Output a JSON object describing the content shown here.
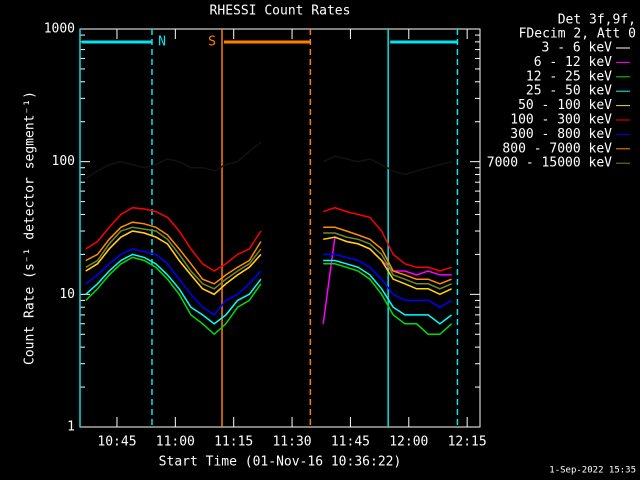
{
  "chart_data": {
    "type": "line",
    "title": "RHESSI Count Rates",
    "xlabel": "Start Time (01-Nov-16 10:36:22)",
    "ylabel": "Count Rate (s⁻¹ detector segment⁻¹)",
    "legend_header": [
      "Det 3f,9f,",
      "FDecim 2, Att 0"
    ],
    "footer": "1-Sep-2022 15:35",
    "log_y": true,
    "ylim": [
      1,
      1000
    ],
    "yticks": [
      1,
      10,
      100,
      1000
    ],
    "xlim": [
      635.5,
      738.3
    ],
    "xticks": [
      {
        "value": 645,
        "label": "10:45"
      },
      {
        "value": 660,
        "label": "11:00"
      },
      {
        "value": 675,
        "label": "11:15"
      },
      {
        "value": 690,
        "label": "11:30"
      },
      {
        "value": 705,
        "label": "11:45"
      },
      {
        "value": 720,
        "label": "12:00"
      },
      {
        "value": 735,
        "label": "12:15"
      }
    ],
    "intervals": [
      {
        "label": "N",
        "color": "#00e5ee",
        "start": 635.5,
        "end": 654.0
      },
      {
        "label": "S",
        "color": "#ff7f00",
        "start": 672.0,
        "end": 694.7
      },
      {
        "label": null,
        "color": "#00e5ee",
        "start": 714.7,
        "end": 732.5
      }
    ],
    "x": [
      637,
      640,
      643,
      646,
      649,
      652,
      655,
      658,
      661,
      664,
      667,
      670,
      673,
      676,
      679,
      682,
      690,
      698,
      701,
      704,
      707,
      710,
      713,
      716,
      719,
      722,
      725,
      728,
      731
    ],
    "series": [
      {
        "name": "3 - 6 keV",
        "color": "#000000",
        "values": [
          75,
          85,
          95,
          100,
          95,
          90,
          95,
          105,
          100,
          90,
          90,
          85,
          95,
          100,
          120,
          140,
          null,
          100,
          110,
          105,
          100,
          105,
          95,
          85,
          80,
          85,
          90,
          95,
          100
        ]
      },
      {
        "name": "6 - 12 keV",
        "color": "#ff00ff",
        "values": [
          15,
          17,
          22,
          27,
          30,
          29,
          27,
          24,
          18,
          14,
          11,
          10,
          12,
          14,
          16,
          20,
          null,
          6,
          27,
          25,
          24,
          22,
          18,
          15,
          15,
          14,
          15,
          14,
          14
        ]
      },
      {
        "name": "12 - 25 keV",
        "color": "#00dd00",
        "values": [
          9,
          11,
          14,
          17,
          19,
          18,
          16,
          13,
          10,
          7,
          6,
          5,
          6,
          8,
          9,
          12,
          null,
          17,
          17,
          16,
          15,
          13,
          10,
          7,
          6,
          6,
          5,
          5,
          6
        ]
      },
      {
        "name": "25 - 50 keV",
        "color": "#00ffff",
        "values": [
          10,
          12,
          15,
          18,
          20,
          19,
          17,
          14,
          11,
          8,
          7,
          6,
          7,
          9,
          10,
          13,
          null,
          18,
          18,
          17,
          16,
          14,
          11,
          8,
          7,
          7,
          7,
          6,
          7
        ]
      },
      {
        "name": "50 - 100 keV",
        "color": "#ffd700",
        "values": [
          15,
          17,
          22,
          27,
          30,
          29,
          27,
          24,
          18,
          14,
          11,
          10,
          12,
          14,
          16,
          20,
          null,
          26,
          27,
          25,
          24,
          22,
          18,
          13,
          12,
          11,
          11,
          10,
          11
        ]
      },
      {
        "name": "100 - 300 keV",
        "color": "#ff0000",
        "values": [
          22,
          25,
          32,
          40,
          45,
          44,
          42,
          38,
          30,
          22,
          17,
          15,
          17,
          20,
          22,
          30,
          null,
          42,
          45,
          42,
          40,
          38,
          30,
          20,
          17,
          16,
          16,
          15,
          16
        ]
      },
      {
        "name": "300 - 800 keV",
        "color": "#0000ff",
        "values": [
          12,
          14,
          17,
          20,
          22,
          21,
          20,
          17,
          13,
          10,
          8,
          7,
          9,
          10,
          12,
          15,
          null,
          20,
          20,
          19,
          18,
          16,
          13,
          10,
          9,
          9,
          9,
          8,
          9
        ]
      },
      {
        "name": "800 - 7000 keV",
        "color": "#ff8c00",
        "values": [
          18,
          20,
          26,
          32,
          35,
          34,
          32,
          28,
          22,
          17,
          13,
          12,
          14,
          16,
          18,
          25,
          null,
          32,
          32,
          30,
          28,
          26,
          22,
          15,
          14,
          13,
          13,
          12,
          13
        ]
      },
      {
        "name": "7000 - 15000 keV",
        "color": "#6b8e23",
        "values": [
          16,
          18,
          24,
          30,
          32,
          31,
          30,
          26,
          20,
          15,
          12,
          11,
          13,
          15,
          17,
          22,
          null,
          29,
          29,
          27,
          26,
          24,
          20,
          14,
          13,
          12,
          12,
          11,
          12
        ]
      }
    ]
  }
}
